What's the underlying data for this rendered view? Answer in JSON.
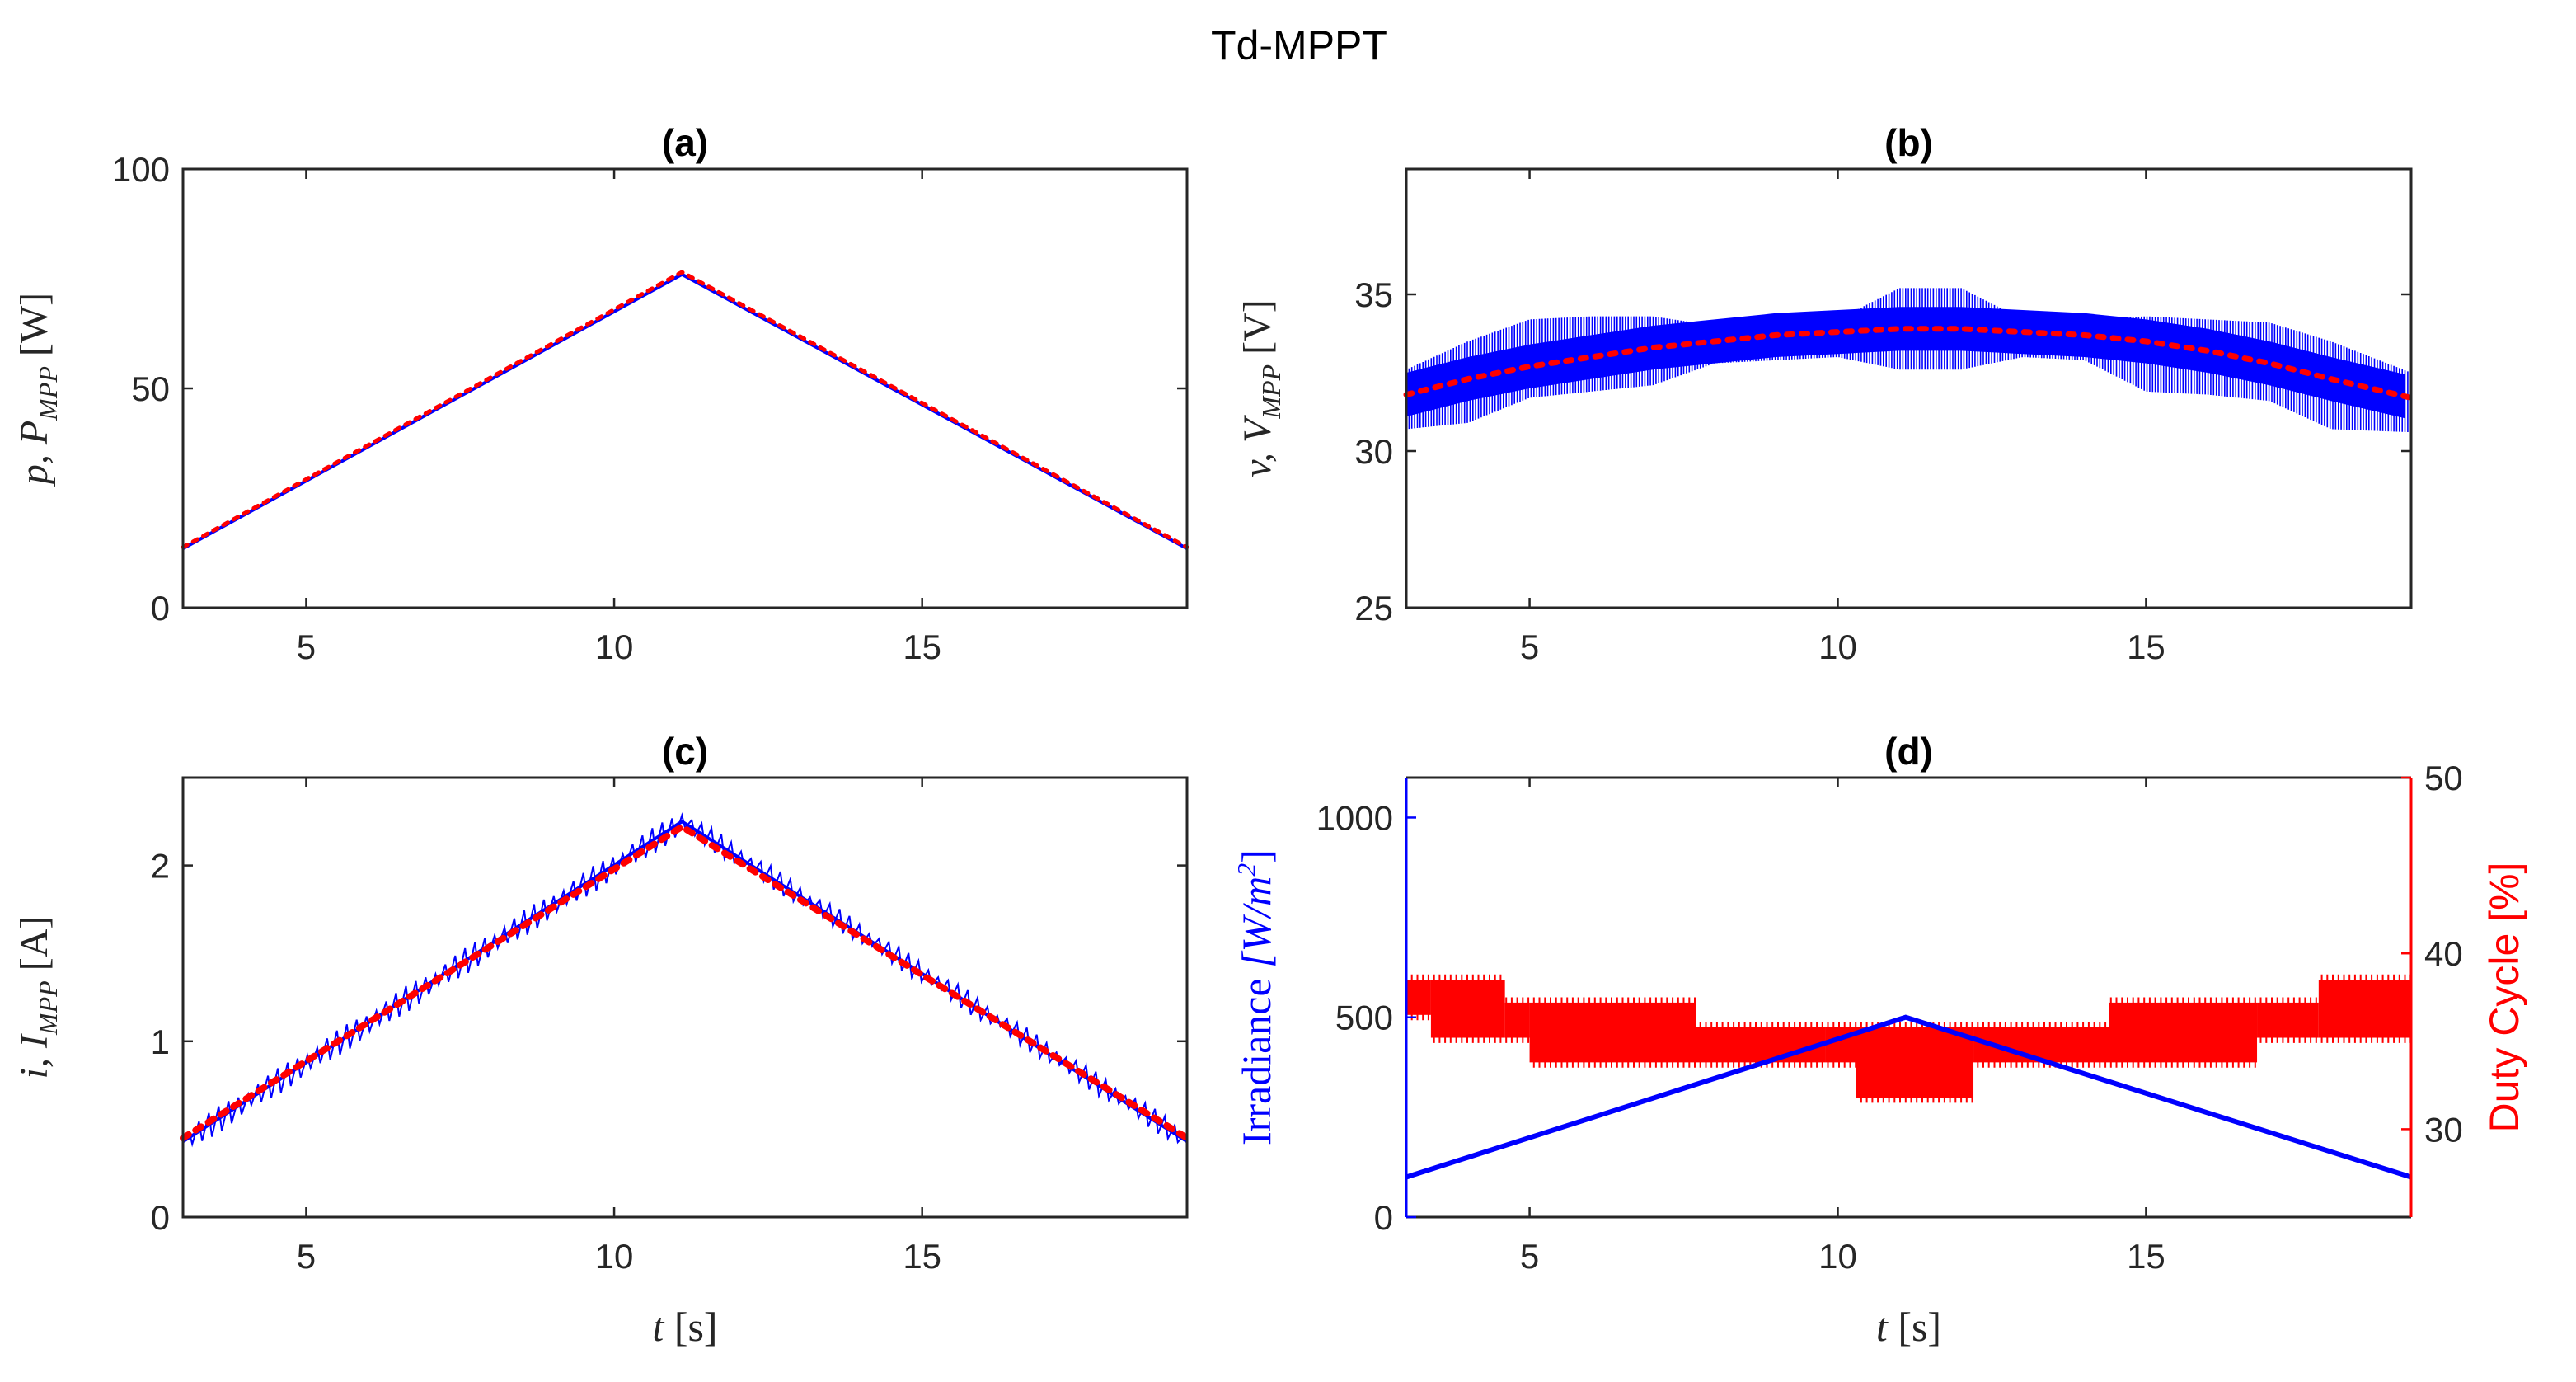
{
  "figure_title": "Td-MPPT",
  "chart_data": [
    {
      "id": "a",
      "type": "line",
      "title": "(a)",
      "ylabel_var": "p",
      "ylabel_mpp": "P",
      "ylabel_sub": "MPP",
      "ylabel_unit": "[W]",
      "xlabel": "",
      "xlim": [
        3,
        19.3
      ],
      "ylim": [
        0,
        100
      ],
      "xticks": [
        5,
        10,
        15
      ],
      "yticks": [
        0,
        50,
        100
      ],
      "series": [
        {
          "name": "p",
          "color": "#0000ff",
          "style": "solid",
          "x": [
            3,
            11.1,
            19.3
          ],
          "y": [
            13.5,
            76,
            13.5
          ]
        },
        {
          "name": "P_MPP",
          "color": "#ff0000",
          "style": "dotted",
          "x": [
            3,
            11.1,
            19.3
          ],
          "y": [
            13.8,
            76.5,
            13.8
          ]
        }
      ]
    },
    {
      "id": "b",
      "type": "line",
      "title": "(b)",
      "ylabel_var": "v",
      "ylabel_mpp": "V",
      "ylabel_sub": "MPP",
      "ylabel_unit": "[V]",
      "xlabel": "",
      "xlim": [
        3,
        19.3
      ],
      "ylim": [
        25,
        39
      ],
      "xticks": [
        5,
        10,
        15
      ],
      "yticks": [
        25,
        30,
        35
      ],
      "series": [
        {
          "name": "v",
          "color": "#0000ff",
          "style": "oscillating",
          "x": [
            3,
            4,
            5,
            6,
            7,
            8,
            9,
            10,
            11,
            12,
            13,
            14,
            15,
            16,
            17,
            18,
            19.3
          ],
          "y_low": [
            30.7,
            30.9,
            31.7,
            31.9,
            32.1,
            32.8,
            32.9,
            33.0,
            32.6,
            32.6,
            33.0,
            32.9,
            31.9,
            31.8,
            31.6,
            30.7,
            30.6
          ],
          "y_high": [
            32.6,
            33.5,
            34.2,
            34.3,
            34.3,
            34.0,
            34.1,
            34.2,
            35.2,
            35.2,
            34.2,
            34.2,
            34.3,
            34.2,
            34.1,
            33.5,
            32.5
          ]
        },
        {
          "name": "V_MPP",
          "color": "#ff0000",
          "style": "dotted",
          "x": [
            3,
            4,
            5,
            6,
            7,
            8,
            9,
            10,
            11,
            12,
            13,
            14,
            15,
            16,
            17,
            18,
            19.3
          ],
          "y": [
            31.8,
            32.3,
            32.7,
            33.0,
            33.3,
            33.5,
            33.7,
            33.8,
            33.9,
            33.9,
            33.8,
            33.7,
            33.5,
            33.2,
            32.8,
            32.3,
            31.7
          ]
        }
      ]
    },
    {
      "id": "c",
      "type": "line",
      "title": "(c)",
      "ylabel_var": "i",
      "ylabel_mpp": "I",
      "ylabel_sub": "MPP",
      "ylabel_unit": "[A]",
      "xlabel": "t",
      "xlabel_unit": "[s]",
      "xlim": [
        3,
        19.3
      ],
      "ylim": [
        0,
        2.5
      ],
      "xticks": [
        5,
        10,
        15
      ],
      "yticks": [
        0,
        1,
        2
      ],
      "series": [
        {
          "name": "i",
          "color": "#0000ff",
          "style": "solid",
          "x": [
            3,
            11.1,
            19.3
          ],
          "y": [
            0.43,
            2.25,
            0.43
          ]
        },
        {
          "name": "I_MPP",
          "color": "#ff0000",
          "style": "dotted",
          "x": [
            3,
            11.1,
            19.3
          ],
          "y": [
            0.45,
            2.22,
            0.45
          ]
        }
      ]
    },
    {
      "id": "d",
      "type": "line",
      "title": "(d)",
      "ylabel_left_main": "Irradiance",
      "ylabel_left_unit": "[W/m",
      "ylabel_left_sup": "2",
      "ylabel_left_close": "]",
      "ylabel_right": "Duty Cycle [%]",
      "xlabel": "t",
      "xlabel_unit": "[s]",
      "xlim": [
        3,
        19.3
      ],
      "ylim_left": [
        0,
        1100
      ],
      "ylim_right": [
        25,
        50
      ],
      "xticks": [
        5,
        10,
        15
      ],
      "yticks_left": [
        0,
        500,
        1000
      ],
      "yticks_right": [
        30,
        40,
        50
      ],
      "series": [
        {
          "name": "Irradiance",
          "color": "#0000ff",
          "axis": "left",
          "style": "solid",
          "x": [
            3,
            11.1,
            19.3
          ],
          "y": [
            100,
            500,
            100
          ]
        },
        {
          "name": "Duty Cycle",
          "color": "#ff0000",
          "axis": "right",
          "style": "band",
          "segments": [
            {
              "x0": 3.0,
              "x1": 3.4,
              "low": 36.5,
              "high": 38.5
            },
            {
              "x0": 3.4,
              "x1": 4.6,
              "low": 35.2,
              "high": 38.5
            },
            {
              "x0": 4.6,
              "x1": 5.0,
              "low": 35.2,
              "high": 37.2
            },
            {
              "x0": 5.0,
              "x1": 7.7,
              "low": 33.8,
              "high": 37.2
            },
            {
              "x0": 7.7,
              "x1": 9.8,
              "low": 33.8,
              "high": 35.8
            },
            {
              "x0": 9.8,
              "x1": 10.3,
              "low": 33.8,
              "high": 35.8
            },
            {
              "x0": 10.3,
              "x1": 12.2,
              "low": 31.8,
              "high": 35.8
            },
            {
              "x0": 12.2,
              "x1": 14.4,
              "low": 33.8,
              "high": 35.8
            },
            {
              "x0": 14.4,
              "x1": 16.8,
              "low": 33.8,
              "high": 37.2
            },
            {
              "x0": 16.8,
              "x1": 17.8,
              "low": 35.2,
              "high": 37.2
            },
            {
              "x0": 17.8,
              "x1": 19.3,
              "low": 35.2,
              "high": 38.5
            }
          ]
        }
      ]
    }
  ]
}
